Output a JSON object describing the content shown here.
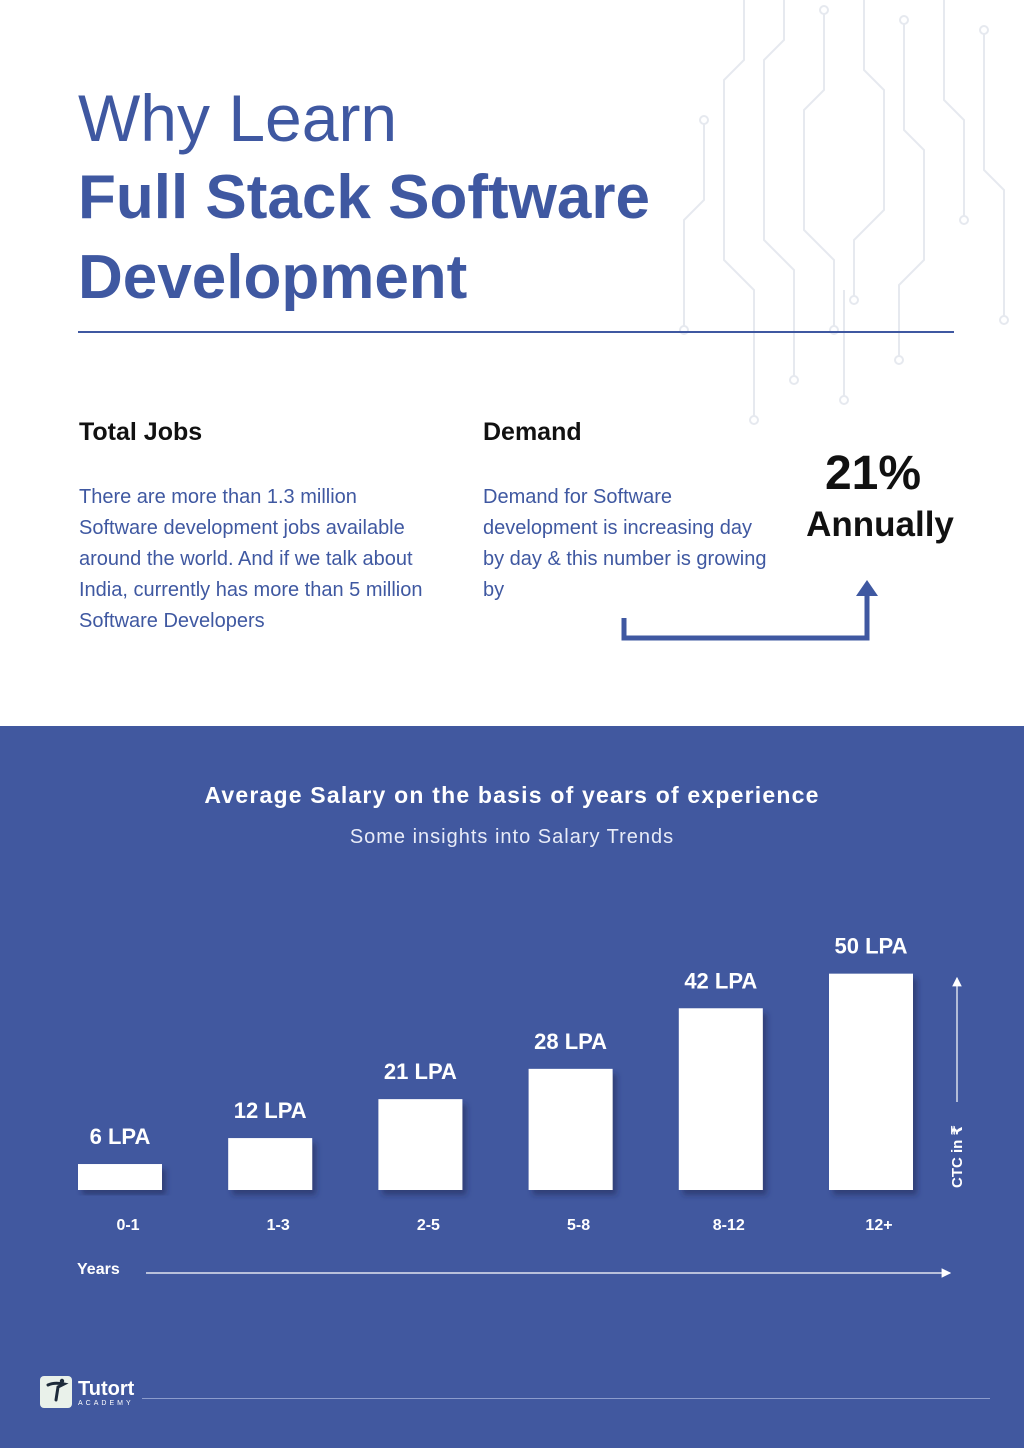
{
  "header": {
    "title_line1": "Why Learn",
    "title_line2": "Full Stack Software",
    "title_line3": "Development"
  },
  "total_jobs": {
    "heading": "Total Jobs",
    "body": "There are more than 1.3 million Software development jobs available around the world. And if we talk about India, currently has more than 5 million Software Developers"
  },
  "demand": {
    "heading": "Demand",
    "body": "Demand for Software development is increasing day by day & this number is growing by",
    "stat_value": "21%",
    "stat_label": "Annually"
  },
  "salary": {
    "title": "Average Salary on the basis of years of experience",
    "subtitle": "Some insights into Salary Trends"
  },
  "chart_data": {
    "type": "bar",
    "categories": [
      "0-1",
      "1-3",
      "2-5",
      "5-8",
      "8-12",
      "12+"
    ],
    "values": [
      6,
      12,
      21,
      28,
      42,
      50
    ],
    "data_labels": [
      "6 LPA",
      "12 LPA",
      "21 LPA",
      "28 LPA",
      "42 LPA",
      "50 LPA"
    ],
    "xlabel": "Years",
    "ylabel": "CTC in ₹",
    "ylim": [
      0,
      52
    ],
    "grid": false,
    "legend": "none"
  },
  "brand": {
    "name": "Tutort",
    "tagline": "ACADEMY"
  },
  "colors": {
    "primary": "#3f58a1",
    "panel": "#41589f",
    "text_dark": "#111111",
    "bar": "#ffffff"
  }
}
